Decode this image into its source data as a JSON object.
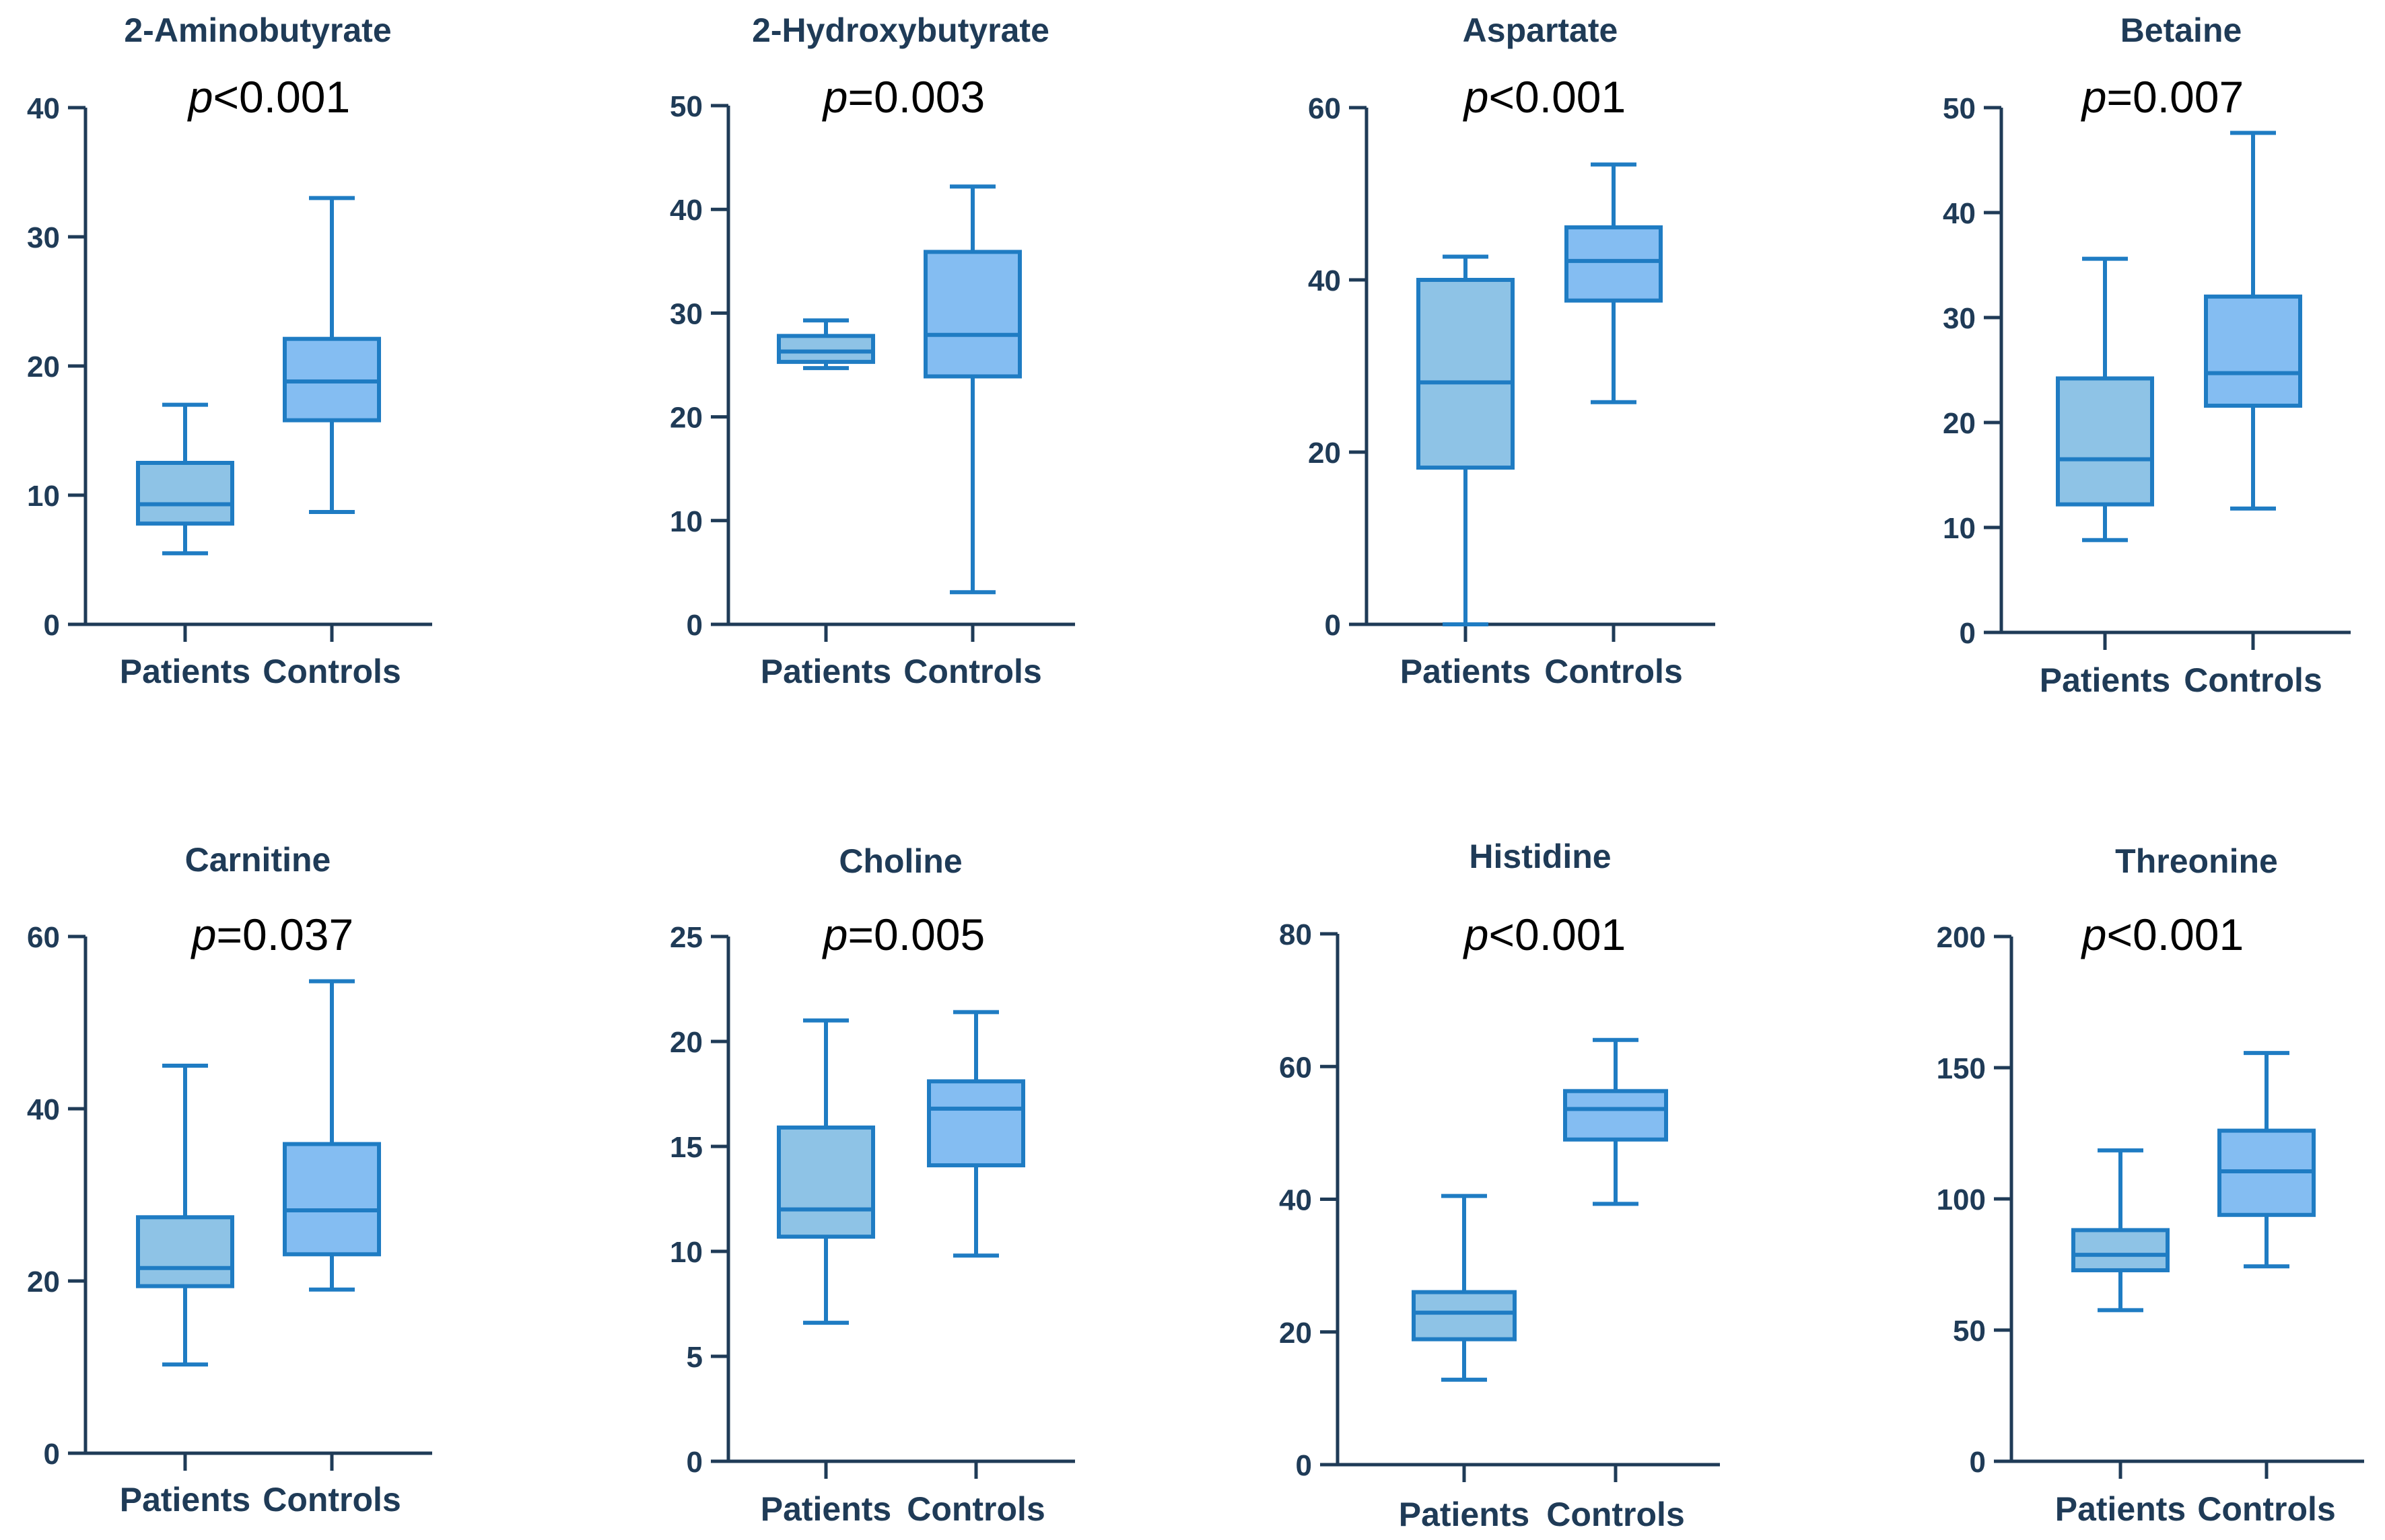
{
  "figure": {
    "category_labels": [
      "Patients",
      "Controls"
    ],
    "colors": {
      "axis": "#1f3b57",
      "text": "#1f3b57",
      "patients_fill": "#8ec3e6",
      "controls_fill": "#84bdf2",
      "box_stroke": "#1f7cc3",
      "pvalue_text": "#000000"
    }
  },
  "chart_data": [
    {
      "type": "box",
      "title": "2-Aminobutyrate",
      "p_prefix": "p",
      "p_rest": "<0.001",
      "ylim": [
        0,
        40
      ],
      "yticks": [
        0,
        10,
        20,
        30,
        40
      ],
      "categories": [
        "Patients",
        "Controls"
      ],
      "boxes": [
        {
          "min": 5.5,
          "q1": 7.8,
          "median": 9.3,
          "q3": 12.5,
          "max": 17
        },
        {
          "min": 8.7,
          "q1": 15.8,
          "median": 18.8,
          "q3": 22.1,
          "max": 33
        }
      ]
    },
    {
      "type": "box",
      "title": "2-Hydroxybutyrate",
      "p_prefix": "p",
      "p_rest": "=0.003",
      "ylim": [
        0,
        50
      ],
      "yticks": [
        0,
        10,
        20,
        30,
        40,
        50
      ],
      "categories": [
        "Patients",
        "Controls"
      ],
      "boxes": [
        {
          "min": 24.7,
          "q1": 25.3,
          "median": 26.3,
          "q3": 27.8,
          "max": 29.3
        },
        {
          "min": 3.1,
          "q1": 23.9,
          "median": 27.9,
          "q3": 35.9,
          "max": 42.2
        }
      ]
    },
    {
      "type": "box",
      "title": "Aspartate",
      "p_prefix": "p",
      "p_rest": "<0.001",
      "ylim": [
        0,
        60
      ],
      "yticks": [
        0,
        20,
        40,
        60
      ],
      "categories": [
        "Patients",
        "Controls"
      ],
      "boxes": [
        {
          "min": 0,
          "q1": 18.2,
          "median": 28.1,
          "q3": 40,
          "max": 42.7
        },
        {
          "min": 25.8,
          "q1": 37.6,
          "median": 42.2,
          "q3": 46.1,
          "max": 53.4
        }
      ]
    },
    {
      "type": "box",
      "title": "Betaine",
      "p_prefix": "p",
      "p_rest": "=0.007",
      "ylim": [
        0,
        50
      ],
      "yticks": [
        0,
        10,
        20,
        30,
        40,
        50
      ],
      "categories": [
        "Patients",
        "Controls"
      ],
      "boxes": [
        {
          "min": 8.8,
          "q1": 12.2,
          "median": 16.5,
          "q3": 24.2,
          "max": 35.6
        },
        {
          "min": 11.8,
          "q1": 21.6,
          "median": 24.7,
          "q3": 32,
          "max": 47.6
        }
      ]
    },
    {
      "type": "box",
      "title": "Carnitine",
      "p_prefix": "p",
      "p_rest": "=0.037",
      "ylim": [
        0,
        60
      ],
      "yticks": [
        0,
        20,
        40,
        60
      ],
      "categories": [
        "Patients",
        "Controls"
      ],
      "boxes": [
        {
          "min": 10.3,
          "q1": 19.4,
          "median": 21.5,
          "q3": 27.4,
          "max": 45
        },
        {
          "min": 19,
          "q1": 23.1,
          "median": 28.2,
          "q3": 35.9,
          "max": 54.8
        }
      ]
    },
    {
      "type": "box",
      "title": "Choline",
      "p_prefix": "p",
      "p_rest": "=0.005",
      "ylim": [
        0,
        25
      ],
      "yticks": [
        0,
        5,
        10,
        15,
        20,
        25
      ],
      "categories": [
        "Patients",
        "Controls"
      ],
      "boxes": [
        {
          "min": 6.6,
          "q1": 10.7,
          "median": 12,
          "q3": 15.9,
          "max": 21
        },
        {
          "min": 9.8,
          "q1": 14.1,
          "median": 16.8,
          "q3": 18.1,
          "max": 21.4
        }
      ]
    },
    {
      "type": "box",
      "title": "Histidine",
      "p_prefix": "p",
      "p_rest": "<0.001",
      "ylim": [
        0,
        80
      ],
      "yticks": [
        0,
        20,
        40,
        60,
        80
      ],
      "categories": [
        "Patients",
        "Controls"
      ],
      "boxes": [
        {
          "min": 12.8,
          "q1": 18.9,
          "median": 22.9,
          "q3": 26,
          "max": 40.5
        },
        {
          "min": 39.3,
          "q1": 49,
          "median": 53.6,
          "q3": 56.3,
          "max": 64
        }
      ]
    },
    {
      "type": "box",
      "title": "Threonine",
      "p_prefix": "p",
      "p_rest": "<0.001",
      "ylim": [
        0,
        200
      ],
      "yticks": [
        0,
        50,
        100,
        150,
        200
      ],
      "categories": [
        "Patients",
        "Controls"
      ],
      "boxes": [
        {
          "min": 57.6,
          "q1": 72.8,
          "median": 78.7,
          "q3": 88.1,
          "max": 118.5
        },
        {
          "min": 74.3,
          "q1": 93.9,
          "median": 110.5,
          "q3": 126,
          "max": 155.6
        }
      ]
    }
  ]
}
